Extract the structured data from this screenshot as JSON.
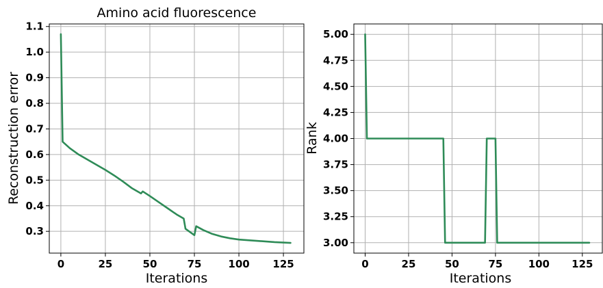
{
  "chart_data": [
    {
      "type": "line",
      "title": "Amino acid fluorescence",
      "xlabel": "Iterations",
      "ylabel": "Reconstruction error",
      "xlim": [
        -6.5,
        136.5
      ],
      "ylim": [
        0.215,
        1.11
      ],
      "xticks": [
        "0",
        "25",
        "50",
        "75",
        "100",
        "125"
      ],
      "yticks": [
        "0.3",
        "0.4",
        "0.5",
        "0.6",
        "0.7",
        "0.8",
        "0.9",
        "1.0",
        "1.1"
      ],
      "grid": true,
      "line_color": "#2e8b57",
      "series": [
        {
          "x": [
            0,
            1,
            5,
            10,
            15,
            20,
            25,
            30,
            35,
            40,
            44,
            45,
            46,
            50,
            55,
            60,
            65,
            69,
            70,
            74,
            75,
            76,
            80,
            85,
            90,
            95,
            100,
            110,
            120,
            129
          ],
          "y": [
            1.07,
            0.65,
            0.625,
            0.6,
            0.58,
            0.56,
            0.54,
            0.518,
            0.494,
            0.468,
            0.452,
            0.448,
            0.456,
            0.438,
            0.414,
            0.39,
            0.366,
            0.35,
            0.31,
            0.29,
            0.285,
            0.32,
            0.305,
            0.29,
            0.28,
            0.273,
            0.268,
            0.263,
            0.258,
            0.255
          ]
        }
      ]
    },
    {
      "type": "line",
      "title": "",
      "xlabel": "Iterations",
      "ylabel": "Rank",
      "xlim": [
        -6.5,
        136.5
      ],
      "ylim": [
        2.9,
        5.1
      ],
      "xticks": [
        "0",
        "25",
        "50",
        "75",
        "100",
        "125"
      ],
      "yticks": [
        "3.00",
        "3.25",
        "3.50",
        "3.75",
        "4.00",
        "4.25",
        "4.50",
        "4.75",
        "5.00"
      ],
      "grid": true,
      "line_color": "#2e8b57",
      "series": [
        {
          "x": [
            0,
            1,
            45,
            46,
            69,
            70,
            75,
            76,
            129
          ],
          "y": [
            5.0,
            4.0,
            4.0,
            3.0,
            3.0,
            4.0,
            4.0,
            3.0,
            3.0
          ]
        }
      ]
    }
  ]
}
